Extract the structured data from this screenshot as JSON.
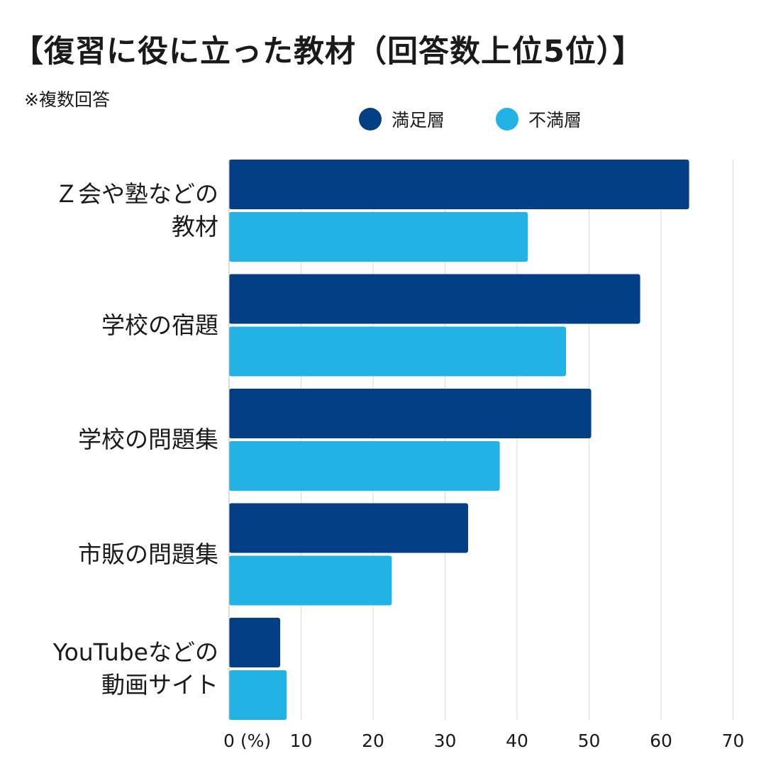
{
  "title": "【復習に役に立った教材（回答数上位5位）】",
  "note": "※複数回答",
  "chart_data": {
    "type": "bar",
    "orientation": "horizontal",
    "categories": [
      "Ｚ会や塾などの\n教材",
      "学校の宿題",
      "学校の問題集",
      "市販の問題集",
      "YouTubeなどの\n動画サイト"
    ],
    "series": [
      {
        "name": "満足層",
        "color": "#023f84",
        "values": [
          63.9,
          57.1,
          50.3,
          33.2,
          7.1
        ]
      },
      {
        "name": "不満層",
        "color": "#23b2e5",
        "values": [
          41.5,
          46.8,
          37.6,
          22.6,
          8.0
        ]
      }
    ],
    "x_ticks": [
      0,
      10,
      20,
      30,
      40,
      50,
      60,
      70
    ],
    "x_unit_label": "(%)",
    "xlim": [
      0,
      70
    ],
    "grid": true,
    "legend_position": "top-right"
  }
}
